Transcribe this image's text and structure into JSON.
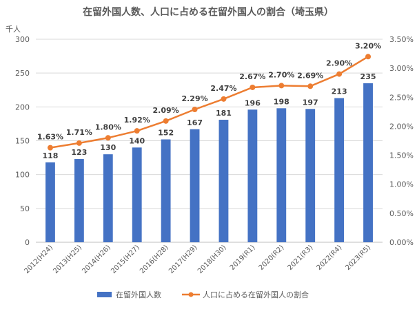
{
  "chart_data": {
    "type": "bar",
    "title": "在留外国人数、人口に占める在留外国人の割合（埼玉県）",
    "y_unit": "千人",
    "categories": [
      "2012(H24)",
      "2013(H25)",
      "2014(H26)",
      "2015(H27)",
      "2016(H28)",
      "2017(H29)",
      "2018(H30)",
      "2019(R1)",
      "2020(R2)",
      "2021(R3)",
      "2022(R4)",
      "2023(R5)"
    ],
    "y_ticks": [
      "0",
      "50",
      "100",
      "150",
      "200",
      "250",
      "300"
    ],
    "y2_ticks": [
      "0.00%",
      "0.50%",
      "1.00%",
      "1.50%",
      "2.00%",
      "2.50%",
      "3.00%",
      "3.50%"
    ],
    "ylim": [
      0,
      300
    ],
    "y2lim": [
      0,
      3.5
    ],
    "grid": true,
    "legend_position": "bottom",
    "series": [
      {
        "name": "在留外国人数",
        "kind": "bar",
        "axis": "left",
        "color": "#4472C4",
        "values": [
          118,
          123,
          130,
          140,
          152,
          167,
          181,
          196,
          198,
          197,
          213,
          235
        ],
        "labels": [
          "118",
          "123",
          "130",
          "140",
          "152",
          "167",
          "181",
          "196",
          "198",
          "197",
          "213",
          "235"
        ]
      },
      {
        "name": "人口に占める在留外国人の割合",
        "kind": "line",
        "axis": "right",
        "color": "#ED7D31",
        "values": [
          1.63,
          1.71,
          1.8,
          1.92,
          2.09,
          2.29,
          2.47,
          2.67,
          2.7,
          2.69,
          2.9,
          3.2
        ],
        "labels": [
          "1.63%",
          "1.71%",
          "1.80%",
          "1.92%",
          "2.09%",
          "2.29%",
          "2.47%",
          "2.67%",
          "2.70%",
          "2.69%",
          "2.90%",
          "3.20%"
        ]
      }
    ]
  }
}
